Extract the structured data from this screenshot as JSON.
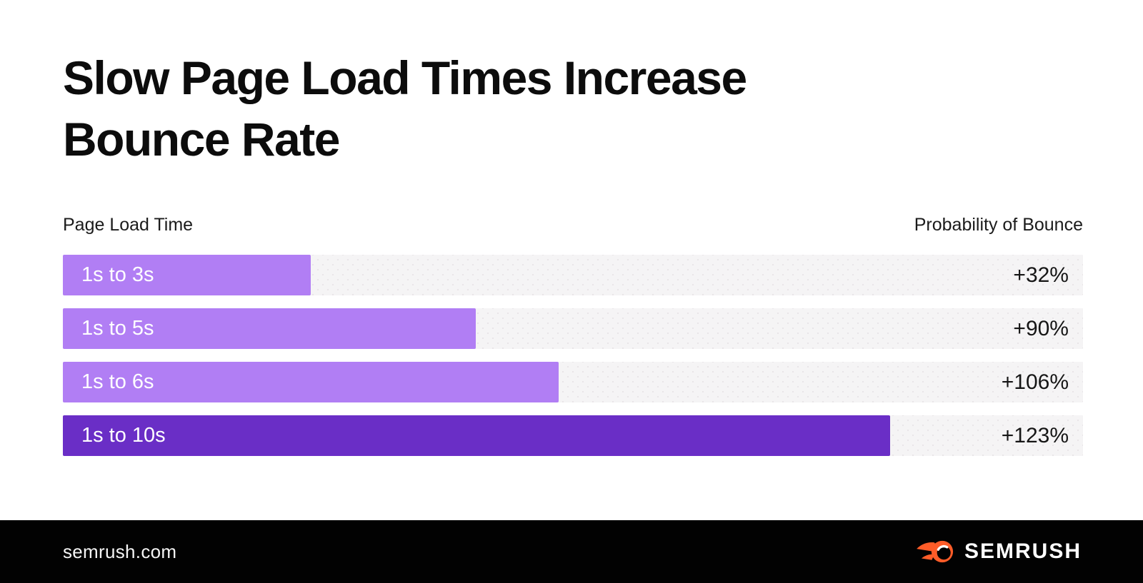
{
  "title": "Slow Page Load Times Increase Bounce Rate",
  "chart_header": {
    "left_label": "Page Load Time",
    "right_label": "Probability of Bounce"
  },
  "chart_data": {
    "type": "bar",
    "orientation": "horizontal",
    "title": "Slow Page Load Times Increase Bounce Rate",
    "categories": [
      "1s to 3s",
      "1s to 5s",
      "1s to 6s",
      "1s to 10s"
    ],
    "values": [
      32,
      90,
      106,
      123
    ],
    "value_labels": [
      "+32%",
      "+90%",
      "+106%",
      "+123%"
    ],
    "axis_left_label": "Page Load Time",
    "axis_right_label": "Probability of Bounce",
    "grid": false,
    "legend": false,
    "bars": [
      {
        "label": "1s to 3s",
        "value": "+32%",
        "width_pct": 24.3,
        "color": "#b17ef4"
      },
      {
        "label": "1s to 5s",
        "value": "+90%",
        "width_pct": 40.5,
        "color": "#b17ef4"
      },
      {
        "label": "1s to 6s",
        "value": "+106%",
        "width_pct": 48.6,
        "color": "#b17ef4"
      },
      {
        "label": "1s to 10s",
        "value": "+123%",
        "width_pct": 81.1,
        "color": "#6a2ec6"
      }
    ],
    "colors": {
      "bar_light": "#b17ef4",
      "bar_dark": "#6a2ec6",
      "track": "#f5f4f5",
      "value_text": "#161616"
    }
  },
  "footer": {
    "url": "semrush.com",
    "logo_text": "SEMRUSH",
    "logo_color": "#ff5c28",
    "background": "#020202"
  }
}
